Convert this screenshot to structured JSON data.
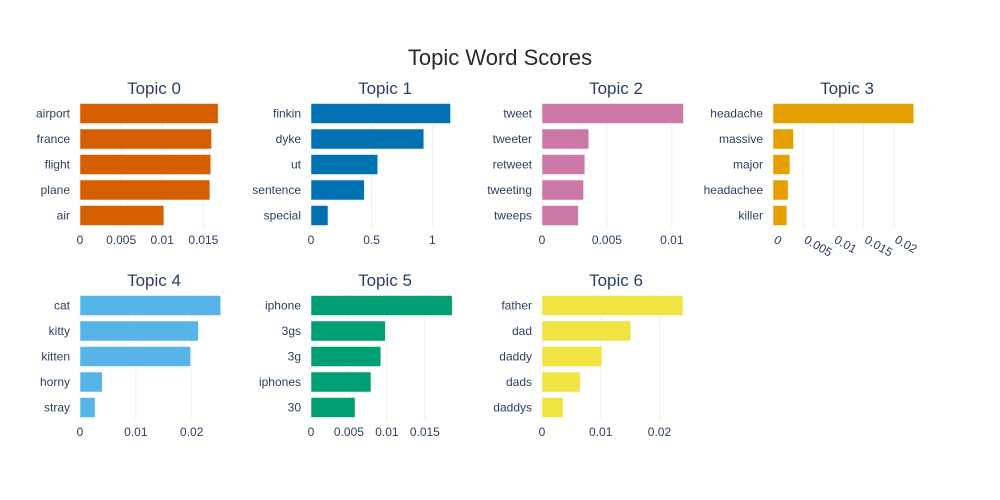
{
  "chart_data": {
    "type": "bar",
    "orientation": "horizontal",
    "title": "Topic Word Scores",
    "grid": true,
    "legend": "none",
    "panels": [
      {
        "title": "Topic 0",
        "color": "#D55E00",
        "categories": [
          "airport",
          "france",
          "flight",
          "plane",
          "air"
        ],
        "values": [
          0.0168,
          0.016,
          0.0159,
          0.0158,
          0.0102
        ],
        "xlim": [
          0,
          0.018
        ],
        "ticks": [
          0,
          0.005,
          0.01,
          0.015
        ],
        "tick_labels": [
          "0",
          "0.005",
          "0.01",
          "0.015"
        ]
      },
      {
        "title": "Topic 1",
        "color": "#0072B2",
        "categories": [
          "finkin",
          "dyke",
          "ut",
          "sentence",
          "special"
        ],
        "values": [
          1.15,
          0.93,
          0.55,
          0.44,
          0.14
        ],
        "xlim": [
          0,
          1.22
        ],
        "ticks": [
          0,
          0.5,
          1
        ],
        "tick_labels": [
          "0",
          "0.5",
          "1"
        ]
      },
      {
        "title": "Topic 2",
        "color": "#CC79A7",
        "categories": [
          "tweet",
          "tweeter",
          "retweet",
          "tweeting",
          "tweeps"
        ],
        "values": [
          0.0109,
          0.0036,
          0.0033,
          0.0032,
          0.0028
        ],
        "xlim": [
          0,
          0.0114
        ],
        "ticks": [
          0,
          0.005,
          0.01
        ],
        "tick_labels": [
          "0",
          "0.005",
          "0.01"
        ]
      },
      {
        "title": "Topic 3",
        "color": "#E69F00",
        "categories": [
          "headache",
          "massive",
          "major",
          "headachee",
          "killer"
        ],
        "values": [
          0.0233,
          0.0034,
          0.0028,
          0.0025,
          0.0023
        ],
        "xlim": [
          0,
          0.0245
        ],
        "ticks": [
          0,
          0.005,
          0.01,
          0.015,
          0.02
        ],
        "tick_labels": [
          "0",
          "0.005",
          "0.01",
          "0.015",
          "0.02"
        ],
        "tick_angle": 30
      },
      {
        "title": "Topic 4",
        "color": "#56B4E9",
        "categories": [
          "cat",
          "kitty",
          "kitten",
          "horny",
          "stray"
        ],
        "values": [
          0.0252,
          0.0212,
          0.0198,
          0.004,
          0.0027
        ],
        "xlim": [
          0,
          0.0265
        ],
        "ticks": [
          0,
          0.01,
          0.02
        ],
        "tick_labels": [
          "0",
          "0.01",
          "0.02"
        ]
      },
      {
        "title": "Topic 5",
        "color": "#009E73",
        "categories": [
          "iphone",
          "3gs",
          "3g",
          "iphones",
          "30"
        ],
        "values": [
          0.0186,
          0.0098,
          0.0092,
          0.0079,
          0.0058
        ],
        "xlim": [
          0,
          0.0195
        ],
        "ticks": [
          0,
          0.005,
          0.01,
          0.015
        ],
        "tick_labels": [
          "0",
          "0.005",
          "0.01",
          "0.015"
        ]
      },
      {
        "title": "Topic 6",
        "color": "#F0E442",
        "categories": [
          "father",
          "dad",
          "daddy",
          "dads",
          "daddys"
        ],
        "values": [
          0.024,
          0.0151,
          0.0102,
          0.0065,
          0.0036
        ],
        "xlim": [
          0,
          0.0252
        ],
        "ticks": [
          0,
          0.01,
          0.02
        ],
        "tick_labels": [
          "0",
          "0.01",
          "0.02"
        ]
      }
    ]
  }
}
